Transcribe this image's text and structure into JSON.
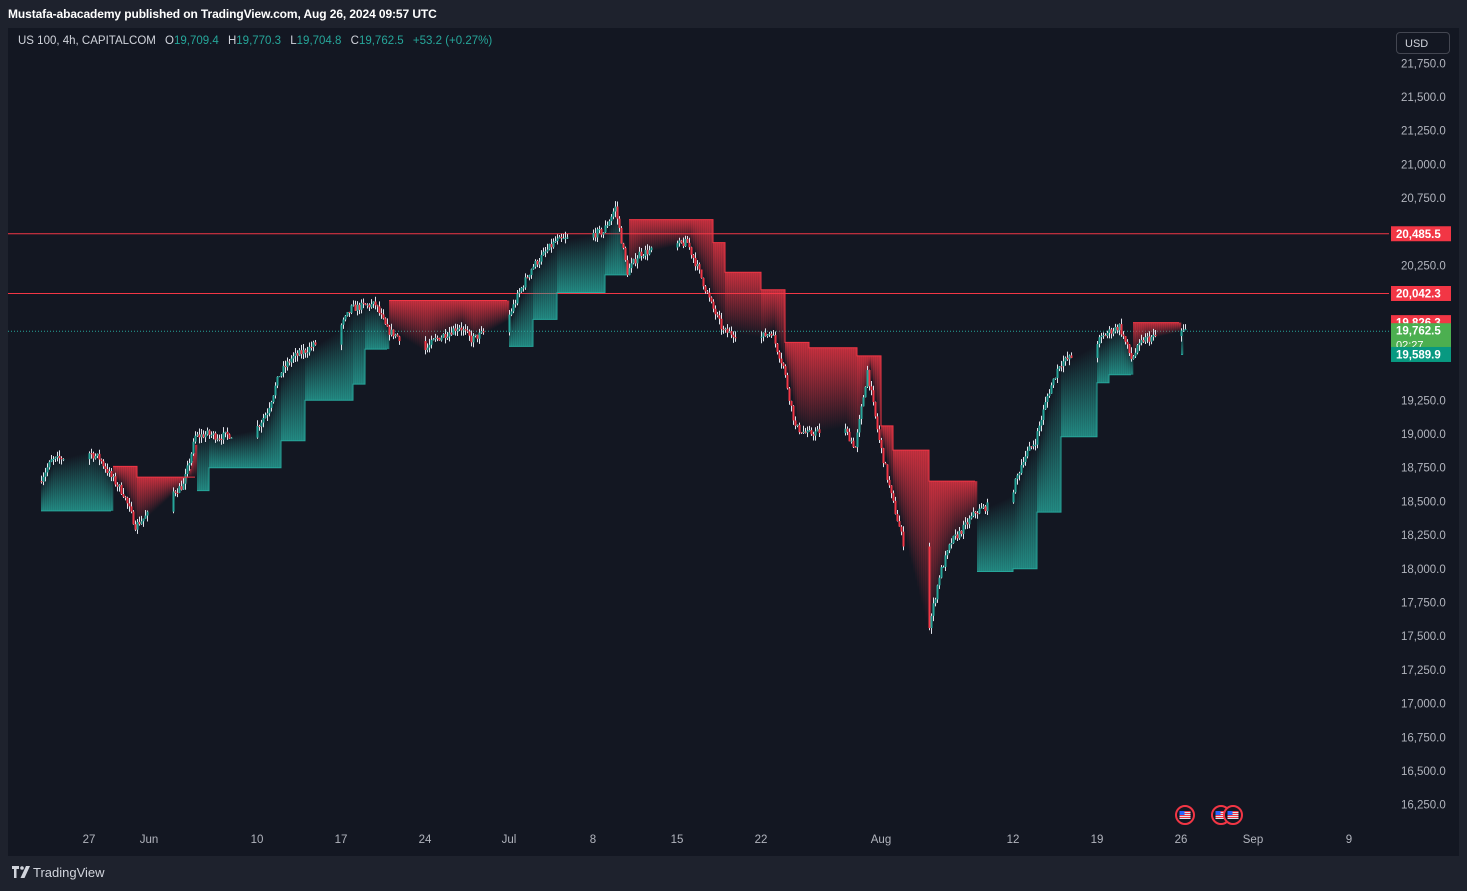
{
  "header": {
    "publisher": "Mustafa-abacademy published on TradingView.com, Aug 26, 2024 09:57 UTC"
  },
  "legend": {
    "symbol": "US 100, 4h, CAPITALCOM",
    "open_label": "O",
    "open": "19,709.4",
    "high_label": "H",
    "high": "19,770.3",
    "low_label": "L",
    "low": "19,704.8",
    "close_label": "C",
    "close": "19,762.5",
    "change": "+53.2 (+0.27%)"
  },
  "currency": "USD",
  "footer": {
    "brand": "TradingView"
  },
  "colors": {
    "background": "#131722",
    "up": "#26a69a",
    "down": "#f23645",
    "line_red": "#f23645",
    "label_green": "#4caf50",
    "label_teal": "#089981"
  },
  "icons": [
    "tradingview-logo-icon",
    "us-flag-event-icon"
  ],
  "chart_data": {
    "type": "candlestick",
    "symbol": "US 100",
    "timeframe": "4h",
    "x_ticks": [
      "27",
      "Jun",
      "10",
      "17",
      "24",
      "Jul",
      "8",
      "15",
      "22",
      "Aug",
      "12",
      "19",
      "26",
      "Sep",
      "9"
    ],
    "y_ticks": [
      "21,750.0",
      "21,500.0",
      "21,250.0",
      "21,000.0",
      "20,750.0",
      "20,250.0",
      "19,250.0",
      "19,000.0",
      "18,750.0",
      "18,500.0",
      "18,250.0",
      "18,000.0",
      "17,750.0",
      "17,500.0",
      "17,250.0",
      "17,000.0",
      "16,750.0",
      "16,500.0",
      "16,250.0"
    ],
    "ylim": [
      16100,
      21800
    ],
    "horizontal_levels": [
      {
        "value": 20485.5,
        "label": "20,485.5"
      },
      {
        "value": 20042.3,
        "label": "20,042.3"
      }
    ],
    "price_labels": [
      {
        "value": 19826.3,
        "label": "19,826.3",
        "role": "trail_resistance"
      },
      {
        "value": 19762.5,
        "label": "19,762.5",
        "sub": "02:27",
        "role": "last_price"
      },
      {
        "value": 19589.9,
        "label": "19,589.9",
        "role": "trail_support"
      }
    ],
    "last_price": 19762.5,
    "price_path": [
      {
        "d": "2024-05-23",
        "p": 18650
      },
      {
        "d": "2024-05-24",
        "p": 18800
      },
      {
        "d": "2024-05-27",
        "p": 18870
      },
      {
        "d": "2024-05-28",
        "p": 18820
      },
      {
        "d": "2024-05-29",
        "p": 18680
      },
      {
        "d": "2024-05-30",
        "p": 18560
      },
      {
        "d": "2024-05-31",
        "p": 18320
      },
      {
        "d": "2024-06-03",
        "p": 18560
      },
      {
        "d": "2024-06-04",
        "p": 18620
      },
      {
        "d": "2024-06-05",
        "p": 18980
      },
      {
        "d": "2024-06-06",
        "p": 19000
      },
      {
        "d": "2024-06-07",
        "p": 18980
      },
      {
        "d": "2024-06-10",
        "p": 19030
      },
      {
        "d": "2024-06-11",
        "p": 19170
      },
      {
        "d": "2024-06-12",
        "p": 19440
      },
      {
        "d": "2024-06-13",
        "p": 19560
      },
      {
        "d": "2024-06-14",
        "p": 19610
      },
      {
        "d": "2024-06-17",
        "p": 19780
      },
      {
        "d": "2024-06-18",
        "p": 19930
      },
      {
        "d": "2024-06-19",
        "p": 19950
      },
      {
        "d": "2024-06-20",
        "p": 19960
      },
      {
        "d": "2024-06-21",
        "p": 19770
      },
      {
        "d": "2024-06-24",
        "p": 19610
      },
      {
        "d": "2024-06-25",
        "p": 19700
      },
      {
        "d": "2024-06-26",
        "p": 19750
      },
      {
        "d": "2024-06-27",
        "p": 19800
      },
      {
        "d": "2024-06-28",
        "p": 19700
      },
      {
        "d": "2024-07-01",
        "p": 19850
      },
      {
        "d": "2024-07-02",
        "p": 20050
      },
      {
        "d": "2024-07-03",
        "p": 20230
      },
      {
        "d": "2024-07-05",
        "p": 20430
      },
      {
        "d": "2024-07-08",
        "p": 20480
      },
      {
        "d": "2024-07-09",
        "p": 20500
      },
      {
        "d": "2024-07-10",
        "p": 20680
      },
      {
        "d": "2024-07-11",
        "p": 20200
      },
      {
        "d": "2024-07-12",
        "p": 20340
      },
      {
        "d": "2024-07-15",
        "p": 20400
      },
      {
        "d": "2024-07-16",
        "p": 20420
      },
      {
        "d": "2024-07-17",
        "p": 20200
      },
      {
        "d": "2024-07-18",
        "p": 19960
      },
      {
        "d": "2024-07-19",
        "p": 19760
      },
      {
        "d": "2024-07-22",
        "p": 19710
      },
      {
        "d": "2024-07-23",
        "p": 19760
      },
      {
        "d": "2024-07-24",
        "p": 19500
      },
      {
        "d": "2024-07-25",
        "p": 19050
      },
      {
        "d": "2024-07-26",
        "p": 19000
      },
      {
        "d": "2024-07-29",
        "p": 19050
      },
      {
        "d": "2024-07-30",
        "p": 18900
      },
      {
        "d": "2024-07-31",
        "p": 19470
      },
      {
        "d": "2024-08-01",
        "p": 18950
      },
      {
        "d": "2024-08-02",
        "p": 18540
      },
      {
        "d": "2024-08-05",
        "p": 17500
      },
      {
        "d": "2024-08-06",
        "p": 17950
      },
      {
        "d": "2024-08-07",
        "p": 18200
      },
      {
        "d": "2024-08-08",
        "p": 18300
      },
      {
        "d": "2024-08-09",
        "p": 18420
      },
      {
        "d": "2024-08-12",
        "p": 18550
      },
      {
        "d": "2024-08-13",
        "p": 18820
      },
      {
        "d": "2024-08-14",
        "p": 18950
      },
      {
        "d": "2024-08-15",
        "p": 19280
      },
      {
        "d": "2024-08-16",
        "p": 19520
      },
      {
        "d": "2024-08-19",
        "p": 19670
      },
      {
        "d": "2024-08-20",
        "p": 19750
      },
      {
        "d": "2024-08-21",
        "p": 19800
      },
      {
        "d": "2024-08-22",
        "p": 19560
      },
      {
        "d": "2024-08-23",
        "p": 19700
      },
      {
        "d": "2024-08-26",
        "p": 19762.5
      }
    ],
    "trailing_stop": [
      {
        "d": "2024-05-23",
        "v": 18430,
        "side": "support"
      },
      {
        "d": "2024-05-29",
        "v": 18760,
        "side": "resistance"
      },
      {
        "d": "2024-05-31",
        "v": 18680,
        "side": "resistance"
      },
      {
        "d": "2024-06-05",
        "v": 18580,
        "side": "support"
      },
      {
        "d": "2024-06-06",
        "v": 18750,
        "side": "support"
      },
      {
        "d": "2024-06-12",
        "v": 18950,
        "side": "support"
      },
      {
        "d": "2024-06-14",
        "v": 19250,
        "side": "support"
      },
      {
        "d": "2024-06-18",
        "v": 19370,
        "side": "support"
      },
      {
        "d": "2024-06-19",
        "v": 19630,
        "side": "support"
      },
      {
        "d": "2024-06-21",
        "v": 19990,
        "side": "resistance"
      },
      {
        "d": "2024-06-28",
        "v": 19990,
        "side": "resistance"
      },
      {
        "d": "2024-07-01",
        "v": 19650,
        "side": "support"
      },
      {
        "d": "2024-07-03",
        "v": 19850,
        "side": "support"
      },
      {
        "d": "2024-07-05",
        "v": 20050,
        "side": "support"
      },
      {
        "d": "2024-07-09",
        "v": 20180,
        "side": "support"
      },
      {
        "d": "2024-07-11",
        "v": 20590,
        "side": "resistance"
      },
      {
        "d": "2024-07-17",
        "v": 20590,
        "side": "resistance"
      },
      {
        "d": "2024-07-18",
        "v": 20420,
        "side": "resistance"
      },
      {
        "d": "2024-07-19",
        "v": 20200,
        "side": "resistance"
      },
      {
        "d": "2024-07-22",
        "v": 20070,
        "side": "resistance"
      },
      {
        "d": "2024-07-24",
        "v": 19680,
        "side": "resistance"
      },
      {
        "d": "2024-07-26",
        "v": 19640,
        "side": "resistance"
      },
      {
        "d": "2024-07-30",
        "v": 19580,
        "side": "resistance"
      },
      {
        "d": "2024-08-01",
        "v": 19060,
        "side": "resistance"
      },
      {
        "d": "2024-08-02",
        "v": 18880,
        "side": "resistance"
      },
      {
        "d": "2024-08-05",
        "v": 18650,
        "side": "resistance"
      },
      {
        "d": "2024-08-09",
        "v": 17980,
        "side": "support"
      },
      {
        "d": "2024-08-12",
        "v": 18000,
        "side": "support"
      },
      {
        "d": "2024-08-14",
        "v": 18420,
        "side": "support"
      },
      {
        "d": "2024-08-16",
        "v": 18980,
        "side": "support"
      },
      {
        "d": "2024-08-19",
        "v": 19380,
        "side": "support"
      },
      {
        "d": "2024-08-20",
        "v": 19440,
        "side": "support"
      },
      {
        "d": "2024-08-22",
        "v": 19826.3,
        "side": "resistance"
      },
      {
        "d": "2024-08-26",
        "v": 19589.9,
        "side": "support"
      }
    ],
    "event_markers": [
      {
        "d": "2024-08-26",
        "icon": "us-flag-event-icon"
      },
      {
        "d": "2024-08-29",
        "icon": "us-flag-event-icon"
      },
      {
        "d": "2024-08-30",
        "icon": "us-flag-event-icon"
      }
    ],
    "grid": false
  }
}
